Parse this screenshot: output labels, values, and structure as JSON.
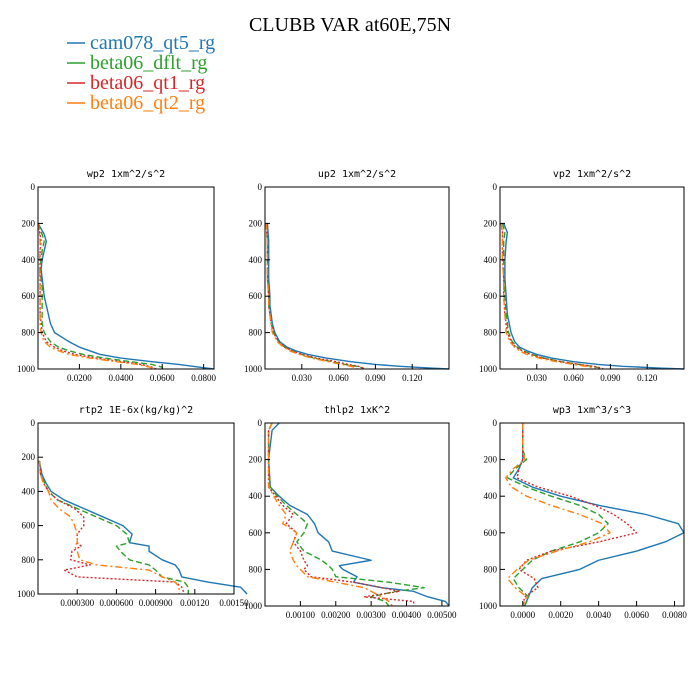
{
  "title": "CLUBB VAR at60E,75N",
  "legend": [
    {
      "name": "cam078_qt5_rg",
      "color": "#1f77b4",
      "dash": "solid"
    },
    {
      "name": "beta06_dflt_rg",
      "color": "#2ca02c",
      "dash": "dashed"
    },
    {
      "name": "beta06_qt1_rg",
      "color": "#d62728",
      "dash": "dotted"
    },
    {
      "name": "beta06_qt2_rg",
      "color": "#ff7f0e",
      "dash": "dashdot"
    }
  ],
  "chart_data": [
    {
      "type": "line",
      "title": "wp2   1xm^2/s^2",
      "xlim": [
        0,
        0.085
      ],
      "ylim": [
        0,
        1000
      ],
      "xticks": [
        0.02,
        0.04,
        0.06,
        0.08
      ],
      "xtick_labels": [
        "0.0200",
        "0.0400",
        "0.0600",
        "0.0800"
      ],
      "yticks": [
        0,
        200,
        400,
        600,
        800,
        1000
      ],
      "ytick_labels": [
        "0",
        "200",
        "400",
        "600",
        "800",
        "1000"
      ],
      "y": [
        200,
        260,
        300,
        350,
        400,
        450,
        500,
        550,
        600,
        650,
        700,
        750,
        800,
        850,
        880,
        900,
        920,
        940,
        960,
        975,
        990,
        1000
      ],
      "series": [
        {
          "values": [
            0.0,
            0.003,
            0.004,
            0.003,
            0.002,
            0.0015,
            0.002,
            0.0025,
            0.003,
            0.004,
            0.005,
            0.006,
            0.008,
            0.015,
            0.02,
            0.025,
            0.03,
            0.04,
            0.055,
            0.068,
            0.078,
            0.085
          ]
        },
        {
          "values": [
            0.0,
            0.002,
            0.003,
            0.002,
            0.0015,
            0.001,
            0.0015,
            0.002,
            0.002,
            0.002,
            0.002,
            0.002,
            0.003,
            0.006,
            0.01,
            0.015,
            0.022,
            0.032,
            0.045,
            0.055,
            0.06,
            0.06
          ]
        },
        {
          "values": [
            0.0,
            0.001,
            0.0015,
            0.001,
            0.001,
            0.001,
            0.001,
            0.001,
            0.001,
            0.001,
            0.001,
            0.0015,
            0.002,
            0.004,
            0.008,
            0.012,
            0.018,
            0.028,
            0.04,
            0.05,
            0.055,
            0.057
          ]
        },
        {
          "values": [
            0.0,
            0.0008,
            0.001,
            0.001,
            0.0008,
            0.0008,
            0.001,
            0.001,
            0.001,
            0.001,
            0.001,
            0.001,
            0.0015,
            0.003,
            0.006,
            0.01,
            0.015,
            0.025,
            0.038,
            0.048,
            0.054,
            0.056
          ]
        }
      ]
    },
    {
      "type": "line",
      "title": "up2   1xm^2/s^2",
      "xlim": [
        0,
        0.15
      ],
      "ylim": [
        0,
        1000
      ],
      "xticks": [
        0.03,
        0.06,
        0.09,
        0.12
      ],
      "xtick_labels": [
        "0.030",
        "0.060",
        "0.090",
        "0.120"
      ],
      "yticks": [
        0,
        200,
        400,
        600,
        800,
        1000
      ],
      "ytick_labels": [
        "0",
        "200",
        "400",
        "600",
        "800",
        "1000"
      ],
      "y": [
        200,
        300,
        400,
        500,
        600,
        650,
        700,
        750,
        800,
        850,
        880,
        900,
        920,
        940,
        960,
        975,
        985,
        995,
        1000
      ],
      "series": [
        {
          "values": [
            0.002,
            0.003,
            0.003,
            0.003,
            0.004,
            0.004,
            0.005,
            0.006,
            0.008,
            0.012,
            0.018,
            0.025,
            0.035,
            0.05,
            0.07,
            0.09,
            0.11,
            0.135,
            0.15
          ]
        },
        {
          "values": [
            0.001,
            0.002,
            0.002,
            0.002,
            0.003,
            0.003,
            0.004,
            0.005,
            0.007,
            0.011,
            0.016,
            0.022,
            0.03,
            0.04,
            0.055,
            0.065,
            0.075,
            0.08,
            0.08
          ]
        },
        {
          "values": [
            0.001,
            0.002,
            0.002,
            0.002,
            0.003,
            0.003,
            0.004,
            0.005,
            0.007,
            0.011,
            0.016,
            0.022,
            0.03,
            0.042,
            0.058,
            0.068,
            0.076,
            0.08,
            0.08
          ]
        },
        {
          "values": [
            0.001,
            0.002,
            0.002,
            0.002,
            0.003,
            0.003,
            0.004,
            0.005,
            0.006,
            0.01,
            0.015,
            0.02,
            0.028,
            0.038,
            0.052,
            0.062,
            0.07,
            0.075,
            0.075
          ]
        }
      ]
    },
    {
      "type": "line",
      "title": "vp2   1xm^2/s^2",
      "xlim": [
        0,
        0.15
      ],
      "ylim": [
        0,
        1000
      ],
      "xticks": [
        0.03,
        0.06,
        0.09,
        0.12
      ],
      "xtick_labels": [
        "0.030",
        "0.060",
        "0.090",
        "0.120"
      ],
      "yticks": [
        0,
        200,
        400,
        600,
        800,
        1000
      ],
      "ytick_labels": [
        "0",
        "200",
        "400",
        "600",
        "800",
        "1000"
      ],
      "y": [
        200,
        250,
        300,
        400,
        500,
        600,
        700,
        800,
        850,
        880,
        900,
        920,
        940,
        960,
        975,
        985,
        995,
        1000
      ],
      "series": [
        {
          "values": [
            0.003,
            0.006,
            0.005,
            0.004,
            0.004,
            0.005,
            0.006,
            0.009,
            0.012,
            0.016,
            0.022,
            0.03,
            0.042,
            0.06,
            0.08,
            0.1,
            0.13,
            0.15
          ]
        },
        {
          "values": [
            0.002,
            0.004,
            0.003,
            0.003,
            0.003,
            0.004,
            0.005,
            0.007,
            0.01,
            0.014,
            0.019,
            0.026,
            0.036,
            0.05,
            0.065,
            0.075,
            0.082,
            0.083
          ]
        },
        {
          "values": [
            0.001,
            0.002,
            0.002,
            0.002,
            0.003,
            0.003,
            0.004,
            0.006,
            0.009,
            0.013,
            0.018,
            0.025,
            0.035,
            0.05,
            0.065,
            0.076,
            0.083,
            0.084
          ]
        },
        {
          "values": [
            0.001,
            0.002,
            0.002,
            0.002,
            0.003,
            0.003,
            0.004,
            0.005,
            0.008,
            0.012,
            0.016,
            0.022,
            0.032,
            0.046,
            0.06,
            0.07,
            0.077,
            0.078
          ]
        }
      ]
    },
    {
      "type": "line",
      "title": "rtp2   1E-6x(kg/kg)^2",
      "xlim": [
        0,
        0.0015
      ],
      "ylim": [
        0,
        1000
      ],
      "xticks": [
        0.0003,
        0.0006,
        0.0009,
        0.0012,
        0.0015
      ],
      "xtick_labels": [
        "0.000300",
        "0.000600",
        "0.000900",
        "0.00120",
        "0.00150"
      ],
      "yticks": [
        0,
        200,
        400,
        600,
        800,
        1000
      ],
      "ytick_labels": [
        "0",
        "200",
        "400",
        "600",
        "800",
        "1000"
      ],
      "y": [
        220,
        300,
        350,
        400,
        450,
        500,
        550,
        600,
        650,
        700,
        720,
        750,
        800,
        830,
        860,
        900,
        930,
        960,
        1000
      ],
      "series": [
        {
          "values": [
            1e-05,
            3e-05,
            6e-05,
            0.0001,
            0.0002,
            0.00035,
            0.0005,
            0.00065,
            0.00072,
            0.0007,
            0.00085,
            0.00085,
            0.00095,
            0.00105,
            0.00108,
            0.0011,
            0.0013,
            0.00155,
            0.0016
          ]
        },
        {
          "values": [
            1e-05,
            2e-05,
            5e-05,
            8e-05,
            0.00015,
            0.0003,
            0.00045,
            0.0006,
            0.00068,
            0.0007,
            0.0006,
            0.00063,
            0.0007,
            0.00085,
            0.0009,
            0.00095,
            0.00112,
            0.00115,
            0.00115
          ]
        },
        {
          "values": [
            1e-05,
            2e-05,
            4e-05,
            8e-05,
            0.00015,
            0.00028,
            0.00035,
            0.00035,
            0.0003,
            0.0003,
            0.00033,
            0.00026,
            0.00025,
            0.0004,
            0.0002,
            0.0003,
            0.00105,
            0.0011,
            0.00112
          ]
        },
        {
          "values": [
            1e-05,
            2e-05,
            4e-05,
            8e-05,
            0.0001,
            0.00016,
            0.00025,
            0.00028,
            0.0003,
            0.0003,
            0.00028,
            0.0003,
            0.00032,
            0.00045,
            0.00085,
            0.00095,
            0.00105,
            0.00108,
            0.00108
          ]
        }
      ]
    },
    {
      "type": "line",
      "title": "thlp2   1xK^2",
      "xlim": [
        0,
        0.0052
      ],
      "ylim": [
        0,
        1000
      ],
      "xticks": [
        0.001,
        0.002,
        0.003,
        0.004,
        0.005
      ],
      "xtick_labels": [
        "0.00100",
        "0.00200",
        "0.00300",
        "0.00400",
        "0.00500"
      ],
      "yticks": [
        0,
        200,
        400,
        600,
        800,
        1000
      ],
      "ytick_labels": [
        "0",
        "200",
        "400",
        "600",
        "800",
        "1000"
      ],
      "y": [
        0,
        40,
        200,
        350,
        400,
        450,
        500,
        550,
        600,
        650,
        700,
        750,
        780,
        800,
        840,
        870,
        900,
        920,
        950,
        975,
        1000
      ],
      "series": [
        {
          "values": [
            0.0004,
            0.0002,
            0.0001,
            0.00015,
            0.0004,
            0.0007,
            0.0012,
            0.0014,
            0.0015,
            0.0018,
            0.0019,
            0.003,
            0.0021,
            0.0022,
            0.0026,
            0.0025,
            0.0033,
            0.0042,
            0.0046,
            0.0051,
            0.0052
          ]
        },
        {
          "values": [
            0.0002,
            0.0001,
            0.0001,
            0.00015,
            0.00035,
            0.0006,
            0.0009,
            0.0012,
            0.0011,
            0.0009,
            0.0011,
            0.0016,
            0.0018,
            0.0019,
            0.002,
            0.0035,
            0.0045,
            0.0037,
            0.003,
            0.0034,
            0.0035
          ]
        },
        {
          "values": [
            0.0002,
            0.0001,
            0.0001,
            0.0001,
            0.0003,
            0.0005,
            0.0008,
            0.0006,
            0.0009,
            0.0008,
            0.001,
            0.0011,
            0.0012,
            0.0011,
            0.0013,
            0.0025,
            0.0033,
            0.0038,
            0.0028,
            0.0042,
            0.0042
          ]
        },
        {
          "values": [
            0.0002,
            0.0001,
            0.0001,
            0.0001,
            0.00025,
            0.0004,
            0.0006,
            0.0005,
            0.0009,
            0.0008,
            0.0007,
            0.0008,
            0.0009,
            0.001,
            0.0012,
            0.002,
            0.0028,
            0.003,
            0.0033,
            0.0035,
            0.0036
          ]
        }
      ]
    },
    {
      "type": "line",
      "title": "wp3   1xm^3/s^3",
      "xlim": [
        -0.0012,
        0.0085
      ],
      "ylim": [
        0,
        1000
      ],
      "xticks": [
        0.0,
        0.002,
        0.004,
        0.006,
        0.008
      ],
      "xtick_labels": [
        "0.0000",
        "0.0020",
        "0.0040",
        "0.0060",
        "0.0080"
      ],
      "yticks": [
        0,
        200,
        400,
        600,
        800,
        1000
      ],
      "ytick_labels": [
        "0",
        "200",
        "400",
        "600",
        "800",
        "1000"
      ],
      "y": [
        0,
        150,
        200,
        250,
        300,
        350,
        400,
        450,
        500,
        550,
        600,
        650,
        700,
        750,
        800,
        850,
        900,
        950,
        1000
      ],
      "series": [
        {
          "values": [
            0.0,
            0.0,
            0.0,
            -0.0002,
            -0.0005,
            0.0005,
            0.002,
            0.004,
            0.0065,
            0.0082,
            0.0085,
            0.0075,
            0.006,
            0.004,
            0.003,
            0.001,
            0.0005,
            0.0003,
            0.0001
          ]
        },
        {
          "values": [
            0.0,
            0.0,
            0.0002,
            -0.0004,
            -0.0008,
            0.0002,
            0.0015,
            0.003,
            0.004,
            0.0045,
            0.004,
            0.003,
            0.0015,
            0.0005,
            0.0,
            -0.0005,
            -0.0002,
            0.0003,
            0.0001
          ]
        },
        {
          "values": [
            0.0,
            0.0,
            0.0,
            -0.0002,
            -0.0003,
            0.0008,
            0.0025,
            0.0038,
            0.0048,
            0.0055,
            0.006,
            0.004,
            0.0015,
            0.0002,
            -0.0002,
            0.0006,
            0.0008,
            0.0001,
            0.0
          ]
        },
        {
          "values": [
            0.0,
            0.0,
            0.0001,
            -0.0005,
            -0.0009,
            -0.0006,
            0.0002,
            0.0015,
            0.003,
            0.0042,
            0.0046,
            0.0035,
            0.0018,
            0.0003,
            -0.0003,
            -0.0008,
            -0.0004,
            0.0002,
            0.0
          ]
        }
      ]
    }
  ]
}
